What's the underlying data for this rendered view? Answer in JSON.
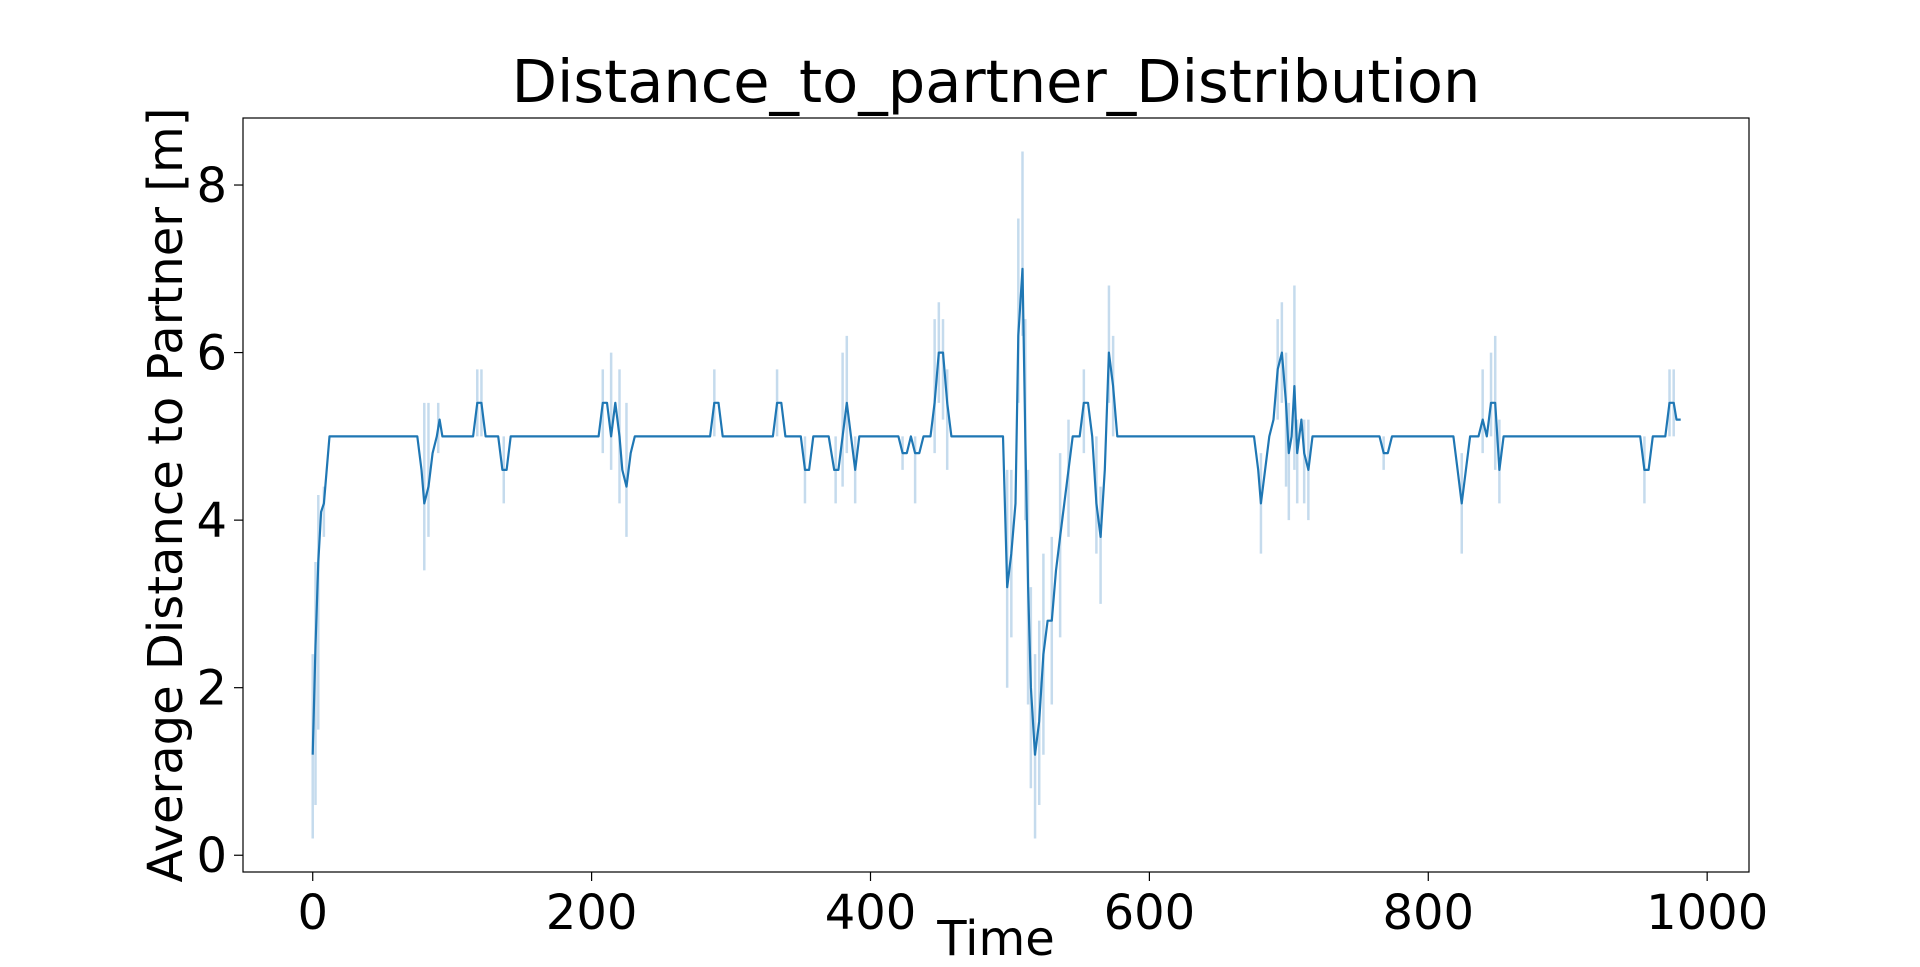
{
  "chart_data": {
    "type": "line",
    "title": "Distance_to_partner_Distribution",
    "xlabel": "Time",
    "ylabel": "Average Distance to Partner [m]",
    "xlim": [
      -50,
      1030
    ],
    "ylim": [
      -0.2,
      8.8
    ],
    "xticks": [
      0,
      200,
      400,
      600,
      800,
      1000
    ],
    "yticks": [
      0,
      2,
      4,
      6,
      8
    ],
    "grid": false,
    "legend": "none",
    "colors": {
      "line": "#1f77b4",
      "band": "#a6c8e3"
    },
    "series": [
      {
        "points": [
          [
            0,
            1.2
          ],
          [
            2,
            2.5
          ],
          [
            4,
            3.5
          ],
          [
            6,
            4.1
          ],
          [
            8,
            4.2
          ],
          [
            10,
            4.6
          ],
          [
            12,
            5.0
          ],
          [
            75,
            5.0
          ],
          [
            78,
            4.6
          ],
          [
            80,
            4.2
          ],
          [
            83,
            4.4
          ],
          [
            86,
            4.8
          ],
          [
            89,
            5.0
          ],
          [
            91,
            5.2
          ],
          [
            93,
            5.0
          ],
          [
            115,
            5.0
          ],
          [
            118,
            5.4
          ],
          [
            121,
            5.4
          ],
          [
            124,
            5.0
          ],
          [
            133,
            5.0
          ],
          [
            136,
            4.6
          ],
          [
            139,
            4.6
          ],
          [
            142,
            5.0
          ],
          [
            205,
            5.0
          ],
          [
            208,
            5.4
          ],
          [
            211,
            5.4
          ],
          [
            214,
            5.0
          ],
          [
            217,
            5.4
          ],
          [
            220,
            5.0
          ],
          [
            222,
            4.6
          ],
          [
            225,
            4.4
          ],
          [
            228,
            4.8
          ],
          [
            231,
            5.0
          ],
          [
            285,
            5.0
          ],
          [
            288,
            5.4
          ],
          [
            291,
            5.4
          ],
          [
            294,
            5.0
          ],
          [
            330,
            5.0
          ],
          [
            333,
            5.4
          ],
          [
            336,
            5.4
          ],
          [
            339,
            5.0
          ],
          [
            350,
            5.0
          ],
          [
            353,
            4.6
          ],
          [
            356,
            4.6
          ],
          [
            359,
            5.0
          ],
          [
            370,
            5.0
          ],
          [
            374,
            4.6
          ],
          [
            377,
            4.6
          ],
          [
            380,
            5.0
          ],
          [
            383,
            5.4
          ],
          [
            386,
            5.0
          ],
          [
            389,
            4.6
          ],
          [
            392,
            5.0
          ],
          [
            420,
            5.0
          ],
          [
            423,
            4.8
          ],
          [
            426,
            4.8
          ],
          [
            429,
            5.0
          ],
          [
            432,
            4.8
          ],
          [
            435,
            4.8
          ],
          [
            438,
            5.0
          ],
          [
            443,
            5.0
          ],
          [
            446,
            5.4
          ],
          [
            449,
            6.0
          ],
          [
            452,
            6.0
          ],
          [
            455,
            5.4
          ],
          [
            458,
            5.0
          ],
          [
            495,
            5.0
          ],
          [
            498,
            3.2
          ],
          [
            501,
            3.6
          ],
          [
            504,
            4.2
          ],
          [
            506,
            6.2
          ],
          [
            509,
            7.0
          ],
          [
            511,
            5.0
          ],
          [
            513,
            3.2
          ],
          [
            515,
            2.0
          ],
          [
            518,
            1.2
          ],
          [
            521,
            1.6
          ],
          [
            524,
            2.4
          ],
          [
            527,
            2.8
          ],
          [
            530,
            2.8
          ],
          [
            533,
            3.4
          ],
          [
            536,
            3.8
          ],
          [
            539,
            4.2
          ],
          [
            542,
            4.6
          ],
          [
            545,
            5.0
          ],
          [
            550,
            5.0
          ],
          [
            553,
            5.4
          ],
          [
            556,
            5.4
          ],
          [
            559,
            5.0
          ],
          [
            562,
            4.2
          ],
          [
            565,
            3.8
          ],
          [
            568,
            4.6
          ],
          [
            571,
            6.0
          ],
          [
            574,
            5.6
          ],
          [
            577,
            5.0
          ],
          [
            675,
            5.0
          ],
          [
            678,
            4.6
          ],
          [
            680,
            4.2
          ],
          [
            683,
            4.6
          ],
          [
            686,
            5.0
          ],
          [
            689,
            5.2
          ],
          [
            692,
            5.8
          ],
          [
            695,
            6.0
          ],
          [
            698,
            5.4
          ],
          [
            700,
            4.8
          ],
          [
            702,
            5.0
          ],
          [
            704,
            5.6
          ],
          [
            706,
            4.8
          ],
          [
            709,
            5.2
          ],
          [
            711,
            4.8
          ],
          [
            714,
            4.6
          ],
          [
            717,
            5.0
          ],
          [
            765,
            5.0
          ],
          [
            768,
            4.8
          ],
          [
            771,
            4.8
          ],
          [
            774,
            5.0
          ],
          [
            818,
            5.0
          ],
          [
            821,
            4.6
          ],
          [
            824,
            4.2
          ],
          [
            827,
            4.6
          ],
          [
            830,
            5.0
          ],
          [
            836,
            5.0
          ],
          [
            839,
            5.2
          ],
          [
            842,
            5.0
          ],
          [
            845,
            5.4
          ],
          [
            848,
            5.4
          ],
          [
            851,
            4.6
          ],
          [
            854,
            5.0
          ],
          [
            952,
            5.0
          ],
          [
            955,
            4.6
          ],
          [
            958,
            4.6
          ],
          [
            961,
            5.0
          ],
          [
            970,
            5.0
          ],
          [
            973,
            5.4
          ],
          [
            976,
            5.4
          ],
          [
            978,
            5.2
          ],
          [
            981,
            5.2
          ]
        ],
        "band": [
          [
            0,
            0.2,
            2.4
          ],
          [
            2,
            0.6,
            3.5
          ],
          [
            4,
            1.5,
            4.3
          ],
          [
            8,
            3.8,
            4.4
          ],
          [
            80,
            3.4,
            5.4
          ],
          [
            83,
            3.8,
            5.4
          ],
          [
            90,
            4.8,
            5.4
          ],
          [
            118,
            5.0,
            5.8
          ],
          [
            121,
            5.0,
            5.8
          ],
          [
            137,
            4.2,
            5.0
          ],
          [
            208,
            4.8,
            5.8
          ],
          [
            214,
            4.6,
            6.0
          ],
          [
            220,
            4.2,
            5.8
          ],
          [
            225,
            3.8,
            5.4
          ],
          [
            288,
            5.0,
            5.8
          ],
          [
            333,
            5.0,
            5.8
          ],
          [
            353,
            4.2,
            5.0
          ],
          [
            375,
            4.2,
            5.0
          ],
          [
            380,
            4.4,
            6.0
          ],
          [
            383,
            4.8,
            6.2
          ],
          [
            389,
            4.2,
            5.0
          ],
          [
            423,
            4.6,
            5.0
          ],
          [
            432,
            4.2,
            5.0
          ],
          [
            446,
            4.8,
            6.4
          ],
          [
            449,
            5.4,
            6.6
          ],
          [
            452,
            5.2,
            6.4
          ],
          [
            455,
            4.6,
            5.8
          ],
          [
            498,
            2.0,
            4.6
          ],
          [
            501,
            2.6,
            4.6
          ],
          [
            506,
            5.4,
            7.6
          ],
          [
            509,
            6.2,
            8.4
          ],
          [
            511,
            4.0,
            6.4
          ],
          [
            513,
            1.8,
            4.6
          ],
          [
            515,
            0.8,
            3.2
          ],
          [
            518,
            0.2,
            2.4
          ],
          [
            521,
            0.6,
            2.8
          ],
          [
            524,
            1.2,
            3.6
          ],
          [
            530,
            1.8,
            3.8
          ],
          [
            536,
            2.6,
            4.8
          ],
          [
            542,
            3.8,
            5.2
          ],
          [
            553,
            4.8,
            5.8
          ],
          [
            562,
            3.6,
            5.0
          ],
          [
            565,
            3.0,
            4.4
          ],
          [
            571,
            5.4,
            6.8
          ],
          [
            574,
            5.0,
            6.2
          ],
          [
            680,
            3.6,
            4.8
          ],
          [
            692,
            5.2,
            6.4
          ],
          [
            695,
            5.4,
            6.6
          ],
          [
            698,
            4.4,
            6.0
          ],
          [
            700,
            4.0,
            5.4
          ],
          [
            704,
            4.6,
            6.8
          ],
          [
            706,
            4.2,
            5.2
          ],
          [
            711,
            4.2,
            5.2
          ],
          [
            714,
            4.0,
            5.2
          ],
          [
            768,
            4.6,
            5.0
          ],
          [
            824,
            3.6,
            4.8
          ],
          [
            839,
            4.8,
            5.8
          ],
          [
            845,
            5.0,
            6.0
          ],
          [
            848,
            4.6,
            6.2
          ],
          [
            851,
            4.2,
            5.2
          ],
          [
            955,
            4.2,
            5.0
          ],
          [
            973,
            5.0,
            5.8
          ],
          [
            976,
            5.0,
            5.8
          ]
        ]
      }
    ]
  }
}
